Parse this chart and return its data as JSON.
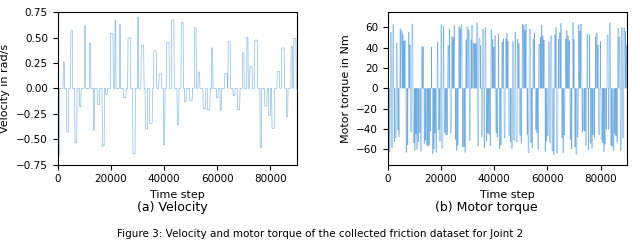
{
  "n_steps": 90000,
  "velocity_ylim": [
    -0.75,
    0.75
  ],
  "velocity_yticks": [
    -0.75,
    -0.5,
    -0.25,
    0.0,
    0.25,
    0.5,
    0.75
  ],
  "torque_ylim": [
    -75,
    75
  ],
  "torque_yticks": [
    -60,
    -40,
    -20,
    0,
    20,
    40,
    60
  ],
  "xlim": [
    0,
    90000
  ],
  "xticks": [
    0,
    20000,
    40000,
    60000,
    80000
  ],
  "xlabel": "Time step",
  "ylabel_velocity": "Velocity in rad/s",
  "ylabel_torque": "Motor torque in Nm",
  "caption_a": "(a) Velocity",
  "caption_b": "(b) Motor torque",
  "figure_caption": "Figure 3: Velocity and motor torque of the collected friction dataset for Joint 2",
  "line_color": "#4C96D7",
  "line_alpha": 0.8,
  "line_width": 0.4,
  "figsize": [
    6.4,
    2.42
  ],
  "dpi": 100,
  "velocity_n_pulses": 55,
  "velocity_pulse_duty": 0.15,
  "torque_n_pulses": 200,
  "torque_pulse_duty": 0.5
}
